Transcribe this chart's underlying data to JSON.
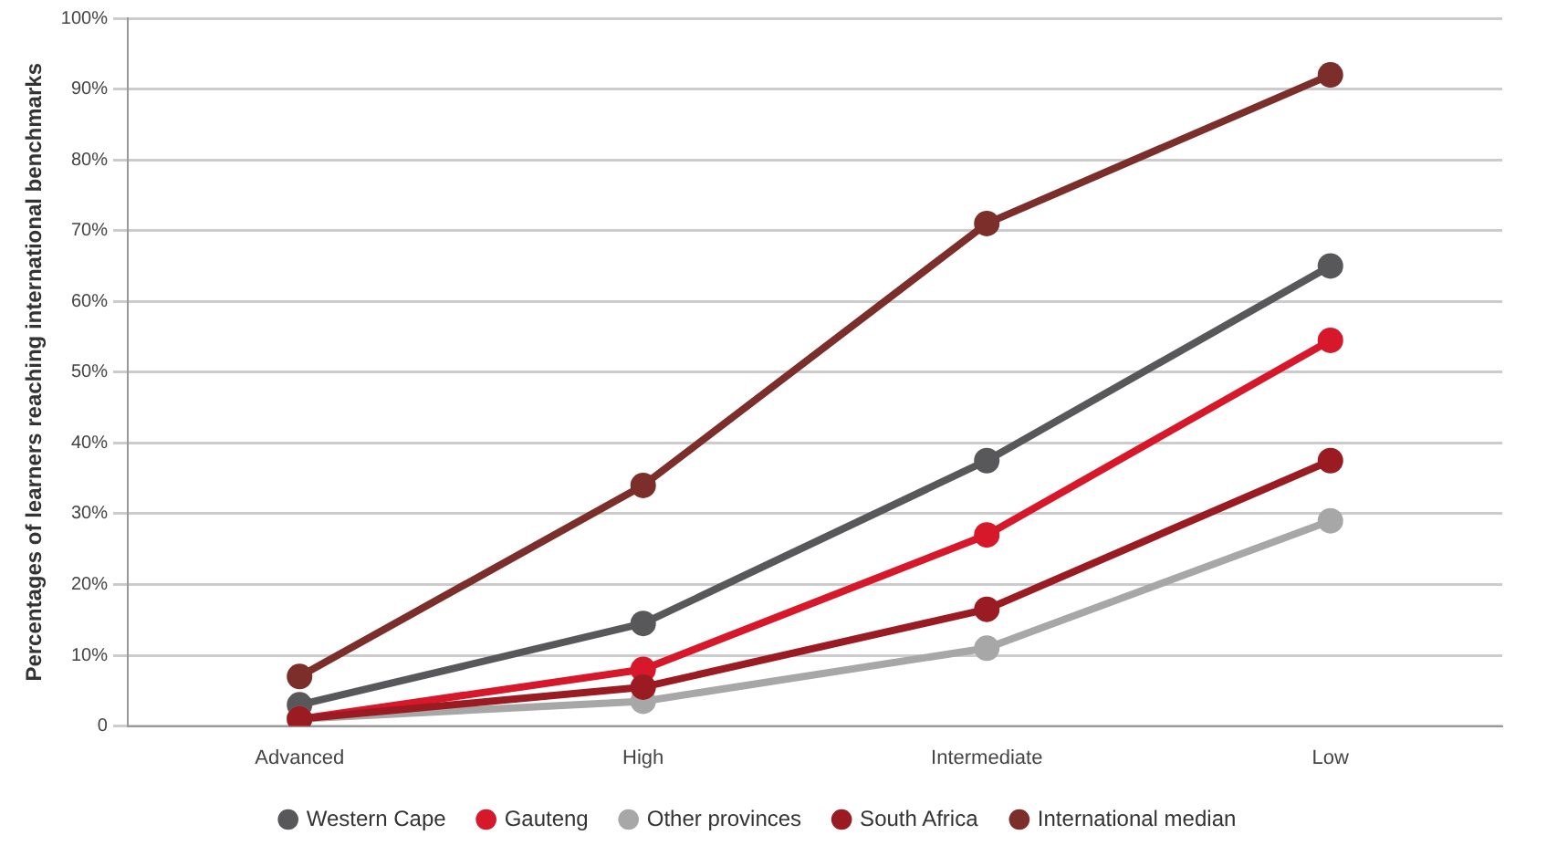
{
  "chart_data": {
    "type": "line",
    "ylabel": "Percentages of learners reaching international benchmarks",
    "categories": [
      "Advanced",
      "High",
      "Intermediate",
      "Low"
    ],
    "series": [
      {
        "name": "Western Cape",
        "color": "#58585a",
        "values": [
          3,
          14.5,
          37.5,
          65
        ]
      },
      {
        "name": "Gauteng",
        "color": "#d7182a",
        "values": [
          1,
          8,
          27,
          54.5
        ]
      },
      {
        "name": "Other provinces",
        "color": "#a7a7a7",
        "values": [
          1,
          3.5,
          11,
          29
        ]
      },
      {
        "name": "South Africa",
        "color": "#9b1b22",
        "values": [
          1,
          5.5,
          16.5,
          37.5
        ]
      },
      {
        "name": "International median",
        "color": "#7b2e2a",
        "values": [
          7,
          34,
          71,
          92
        ]
      }
    ],
    "ylim": [
      0,
      100
    ],
    "yticks": [
      0,
      {
        "value": 10,
        "label": "10%"
      },
      {
        "value": 20,
        "label": "20%"
      },
      {
        "value": 30,
        "label": "30%"
      },
      {
        "value": 40,
        "label": "40%"
      },
      {
        "value": 50,
        "label": "50%"
      },
      {
        "value": 60,
        "label": "60%"
      },
      {
        "value": 70,
        "label": "70%"
      },
      {
        "value": 80,
        "label": "80%"
      },
      {
        "value": 90,
        "label": "90%"
      },
      {
        "value": 100,
        "label": "100%"
      }
    ],
    "grid": "y",
    "legend": "bottom",
    "marker": "circle",
    "line_style": "solid"
  }
}
